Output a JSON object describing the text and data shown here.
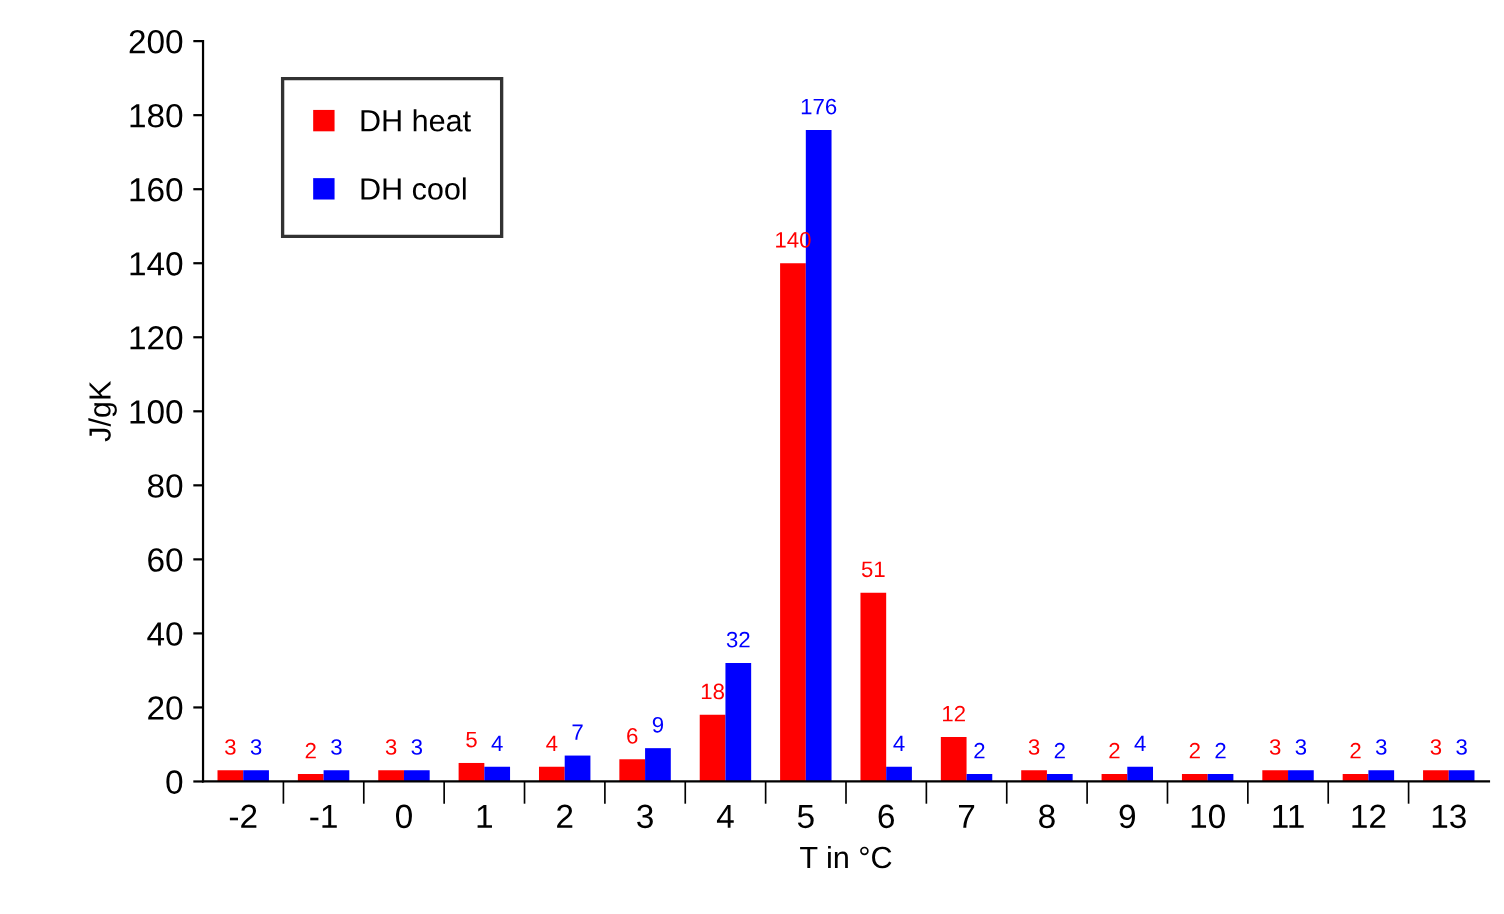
{
  "chart_data": {
    "type": "bar",
    "xlabel": "T in °C",
    "ylabel": "J/gK",
    "categories": [
      "-2",
      "-1",
      "0",
      "1",
      "2",
      "3",
      "4",
      "5",
      "6",
      "7",
      "8",
      "9",
      "10",
      "11",
      "12",
      "13"
    ],
    "series": [
      {
        "name": "DH heat",
        "color": "#ff0000",
        "values": [
          3,
          2,
          3,
          5,
          4,
          6,
          18,
          140,
          51,
          12,
          3,
          2,
          2,
          3,
          2,
          3
        ]
      },
      {
        "name": "DH cool",
        "color": "#0000ff",
        "values": [
          3,
          3,
          3,
          4,
          7,
          9,
          32,
          176,
          4,
          2,
          2,
          4,
          2,
          3,
          3,
          3
        ]
      }
    ],
    "ylim": [
      0,
      200
    ],
    "yticks": [
      0,
      20,
      40,
      60,
      80,
      100,
      120,
      140,
      160,
      180,
      200
    ],
    "data_labels": true,
    "grid": false,
    "legend": "top left"
  }
}
